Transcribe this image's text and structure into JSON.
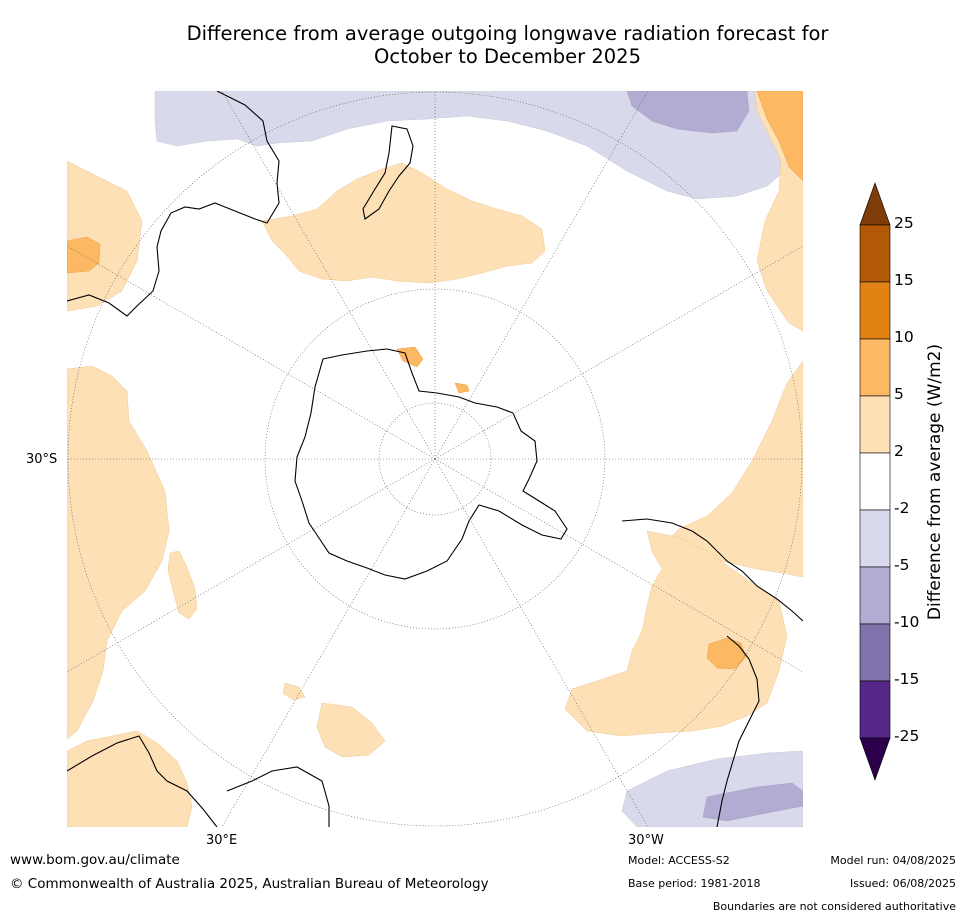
{
  "title_line1": "Difference from average outgoing longwave radiation forecast for",
  "title_line2": "October to December 2025",
  "map": {
    "lat_label": "30°S",
    "lon_label_left": "30°E",
    "lon_label_right": "30°W"
  },
  "colorbar": {
    "title": "Difference from average (W/m2)",
    "ticks": [
      "25",
      "15",
      "10",
      "5",
      "2",
      "-2",
      "-5",
      "-10",
      "-15",
      "-25"
    ],
    "colors": [
      "#b35806",
      "#e08214",
      "#fdb863",
      "#fee0b6",
      "#ffffff",
      "#d8daeb",
      "#b2abd2",
      "#8073ac",
      "#542788"
    ],
    "extend_high_color": "#7f3b08",
    "extend_low_color": "#2d004b"
  },
  "footer": {
    "website": "www.bom.gov.au/climate",
    "copyright": "© Commonwealth of Australia 2025, Australian Bureau of Meteorology",
    "model": "Model: ACCESS-S2",
    "base_period": "Base period: 1981-2018",
    "model_run": "Model run: 04/08/2025",
    "issued": "Issued: 06/08/2025",
    "disclaimer": "Boundaries are not considered authoritative"
  }
}
